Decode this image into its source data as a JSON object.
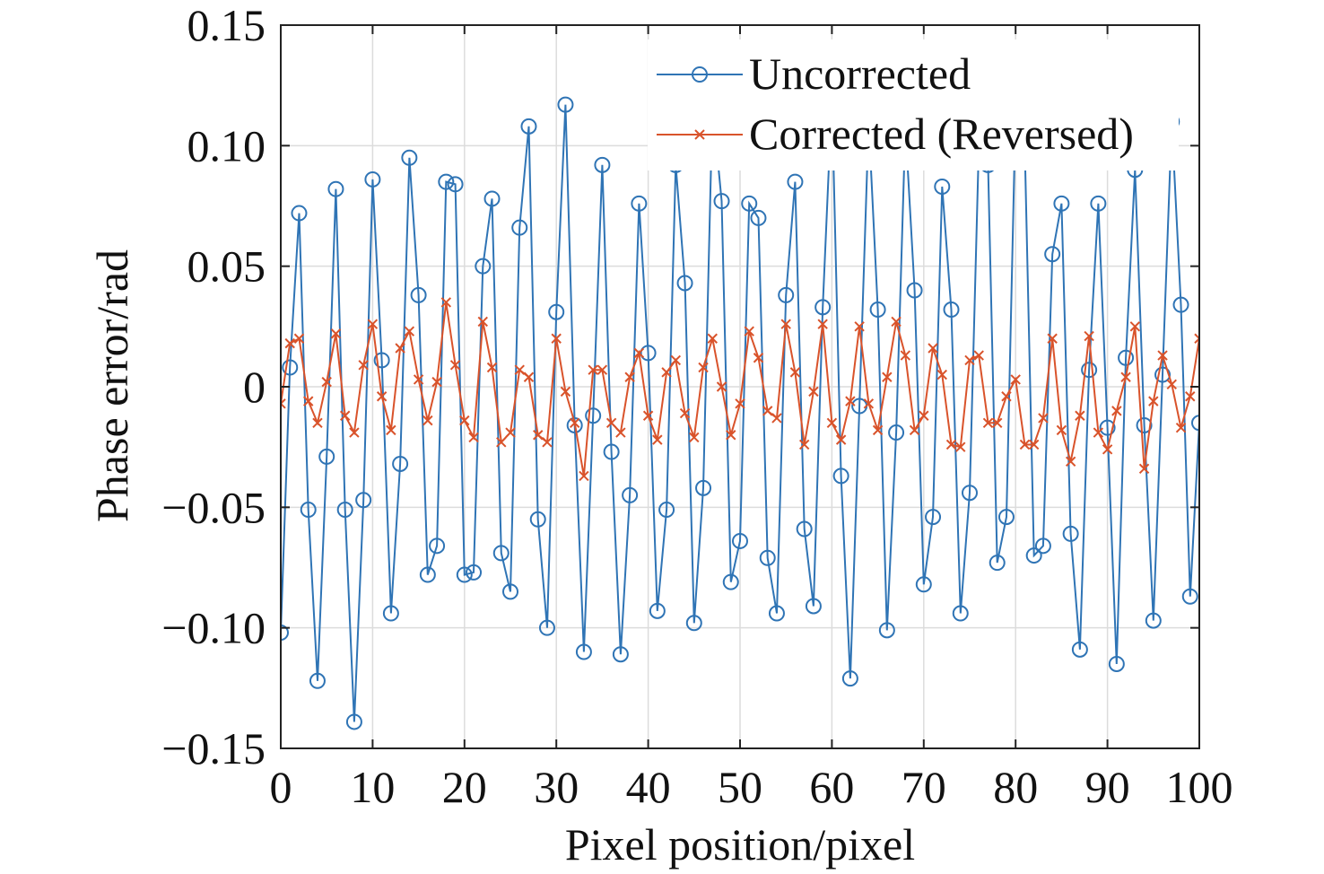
{
  "chart_data": {
    "type": "line",
    "title": "",
    "xlabel": "Pixel position/pixel",
    "ylabel": "Phase error/rad",
    "xlim": [
      0,
      100
    ],
    "ylim": [
      -0.15,
      0.15
    ],
    "xticks": [
      0,
      10,
      20,
      30,
      40,
      50,
      60,
      70,
      80,
      90,
      100
    ],
    "xtick_labels": [
      "0",
      "10",
      "20",
      "30",
      "40",
      "50",
      "60",
      "70",
      "80",
      "90",
      "100"
    ],
    "yticks": [
      -0.15,
      -0.1,
      -0.05,
      0,
      0.05,
      0.1,
      0.15
    ],
    "ytick_labels": [
      "−0.15",
      "−0.10",
      "−0.05",
      "0",
      "0.05",
      "0.10",
      "0.15"
    ],
    "grid": true,
    "legend_position": "top-right",
    "x": [
      0,
      1,
      2,
      3,
      4,
      5,
      6,
      7,
      8,
      9,
      10,
      11,
      12,
      13,
      14,
      15,
      16,
      17,
      18,
      19,
      20,
      21,
      22,
      23,
      24,
      25,
      26,
      27,
      28,
      29,
      30,
      31,
      32,
      33,
      34,
      35,
      36,
      37,
      38,
      39,
      40,
      41,
      42,
      43,
      44,
      45,
      46,
      47,
      48,
      49,
      50,
      51,
      52,
      53,
      54,
      55,
      56,
      57,
      58,
      59,
      60,
      61,
      62,
      63,
      64,
      65,
      66,
      67,
      68,
      69,
      70,
      71,
      72,
      73,
      74,
      75,
      76,
      77,
      78,
      79,
      80,
      81,
      82,
      83,
      84,
      85,
      86,
      87,
      88,
      89,
      90,
      91,
      92,
      93,
      94,
      95,
      96,
      97,
      98,
      99,
      100
    ],
    "series": [
      {
        "name": "Uncorrected",
        "color": "#2f74b5",
        "marker": "circle",
        "values": [
          -0.102,
          0.008,
          0.072,
          -0.051,
          -0.122,
          -0.029,
          0.082,
          -0.051,
          -0.139,
          -0.047,
          0.086,
          0.011,
          -0.094,
          -0.032,
          0.095,
          0.038,
          -0.078,
          -0.066,
          0.085,
          0.084,
          -0.078,
          -0.077,
          0.05,
          0.078,
          -0.069,
          -0.085,
          0.066,
          0.108,
          -0.055,
          -0.1,
          0.031,
          0.117,
          -0.016,
          -0.11,
          -0.012,
          0.092,
          -0.027,
          -0.111,
          -0.045,
          0.076,
          0.014,
          -0.093,
          -0.051,
          0.092,
          0.043,
          -0.098,
          -0.042,
          0.117,
          0.077,
          -0.081,
          -0.064,
          0.076,
          0.07,
          -0.071,
          -0.094,
          0.038,
          0.085,
          -0.059,
          -0.091,
          0.033,
          0.12,
          -0.037,
          -0.121,
          -0.008,
          0.11,
          0.032,
          -0.101,
          -0.019,
          0.108,
          0.04,
          -0.082,
          -0.054,
          0.083,
          0.032,
          -0.094,
          -0.044,
          0.1,
          0.092,
          -0.073,
          -0.054,
          0.115,
          0.1,
          -0.07,
          -0.066,
          0.055,
          0.076,
          -0.061,
          -0.109,
          0.007,
          0.076,
          -0.017,
          -0.115,
          0.012,
          0.09,
          -0.016,
          -0.097,
          0.005,
          0.11,
          0.034,
          -0.087,
          -0.015
        ]
      },
      {
        "name": "Corrected (Reversed)",
        "color": "#d9532b",
        "marker": "x",
        "values": [
          -0.007,
          0.018,
          0.02,
          -0.006,
          -0.015,
          0.002,
          0.022,
          -0.012,
          -0.019,
          0.009,
          0.026,
          -0.004,
          -0.018,
          0.016,
          0.023,
          0.003,
          -0.014,
          0.002,
          0.035,
          0.009,
          -0.014,
          -0.021,
          0.027,
          0.008,
          -0.023,
          -0.019,
          0.007,
          0.004,
          -0.02,
          -0.023,
          0.02,
          -0.002,
          -0.015,
          -0.037,
          0.007,
          0.007,
          -0.015,
          -0.019,
          0.004,
          0.014,
          -0.012,
          -0.022,
          0.006,
          0.011,
          -0.011,
          -0.021,
          0.008,
          0.02,
          0.0,
          -0.02,
          -0.007,
          0.023,
          0.012,
          -0.01,
          -0.013,
          0.026,
          0.006,
          -0.024,
          -0.002,
          0.026,
          -0.015,
          -0.022,
          -0.006,
          0.025,
          -0.007,
          -0.018,
          0.004,
          0.027,
          0.013,
          -0.018,
          -0.012,
          0.016,
          0.005,
          -0.024,
          -0.025,
          0.011,
          0.013,
          -0.015,
          -0.015,
          -0.004,
          0.003,
          -0.024,
          -0.024,
          -0.013,
          0.02,
          -0.018,
          -0.031,
          -0.012,
          0.021,
          -0.019,
          -0.026,
          -0.01,
          0.004,
          0.025,
          -0.034,
          -0.006,
          0.013,
          0.001,
          -0.017,
          -0.004,
          0.02
        ]
      }
    ]
  }
}
